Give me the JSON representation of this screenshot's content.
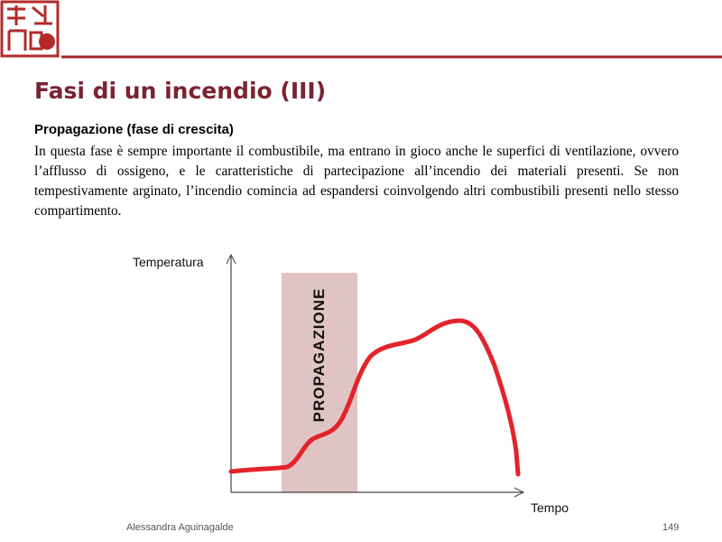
{
  "header": {
    "title": "Fasi di un incendio (III)"
  },
  "section": {
    "heading": "Propagazione (fase di crescita)",
    "paragraph": "In questa fase è sempre importante il combustibile, ma entrano in gioco anche le superfici di ventilazione, ovvero l’afflusso di ossigeno, e le caratteristiche di partecipazione all’incendio dei materiali presenti.  Se non tempestivamente arginato, l’incendio comincia ad espandersi coinvolgendo altri combustibili presenti nello stesso compartimento."
  },
  "diagram": {
    "y_axis_label": "Temperatura",
    "x_axis_label": "Tempo",
    "phase_label": "PROPAGAZIONE"
  },
  "footer": {
    "author": "Alessandra Aguinagalde",
    "page": "149"
  }
}
